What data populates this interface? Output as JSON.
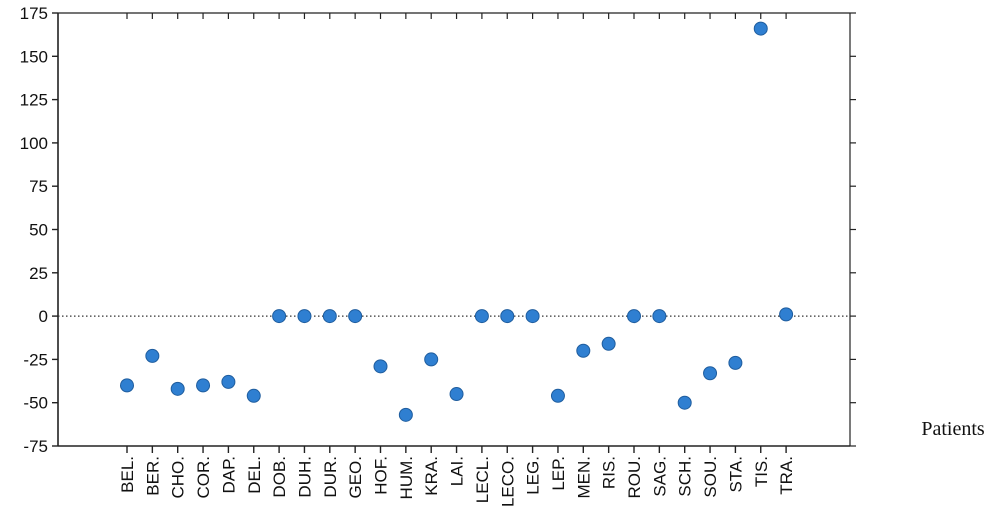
{
  "chart_data": {
    "type": "scatter",
    "title": "",
    "xlabel": "Patients",
    "ylabel": "",
    "ylim": [
      -75,
      175
    ],
    "yticks": [
      -75,
      -50,
      -25,
      0,
      25,
      50,
      75,
      100,
      125,
      150,
      175
    ],
    "categories": [
      "BEL.",
      "BER.",
      "CHO.",
      "COR.",
      "DAP.",
      "DEL.",
      "DOB.",
      "DUH.",
      "DUR.",
      "GEO.",
      "HOF.",
      "HUM.",
      "KRA.",
      "LAI.",
      "LECL.",
      "LECO.",
      "LEG.",
      "LEP.",
      "MEN.",
      "RIS.",
      "ROU.",
      "SAG.",
      "SCH.",
      "SOU.",
      "STA.",
      "TIS.",
      "TRA."
    ],
    "values": [
      -40,
      -23,
      -42,
      -40,
      -38,
      -46,
      0,
      0,
      0,
      0,
      -29,
      -57,
      -25,
      -45,
      0,
      0,
      0,
      -46,
      -20,
      -16,
      0,
      0,
      -50,
      -33,
      -27,
      166,
      1
    ],
    "reference_line": 0,
    "grid": false,
    "marker_color": "#2f7fd1",
    "marker_edge_color": "#1f5d9e"
  }
}
